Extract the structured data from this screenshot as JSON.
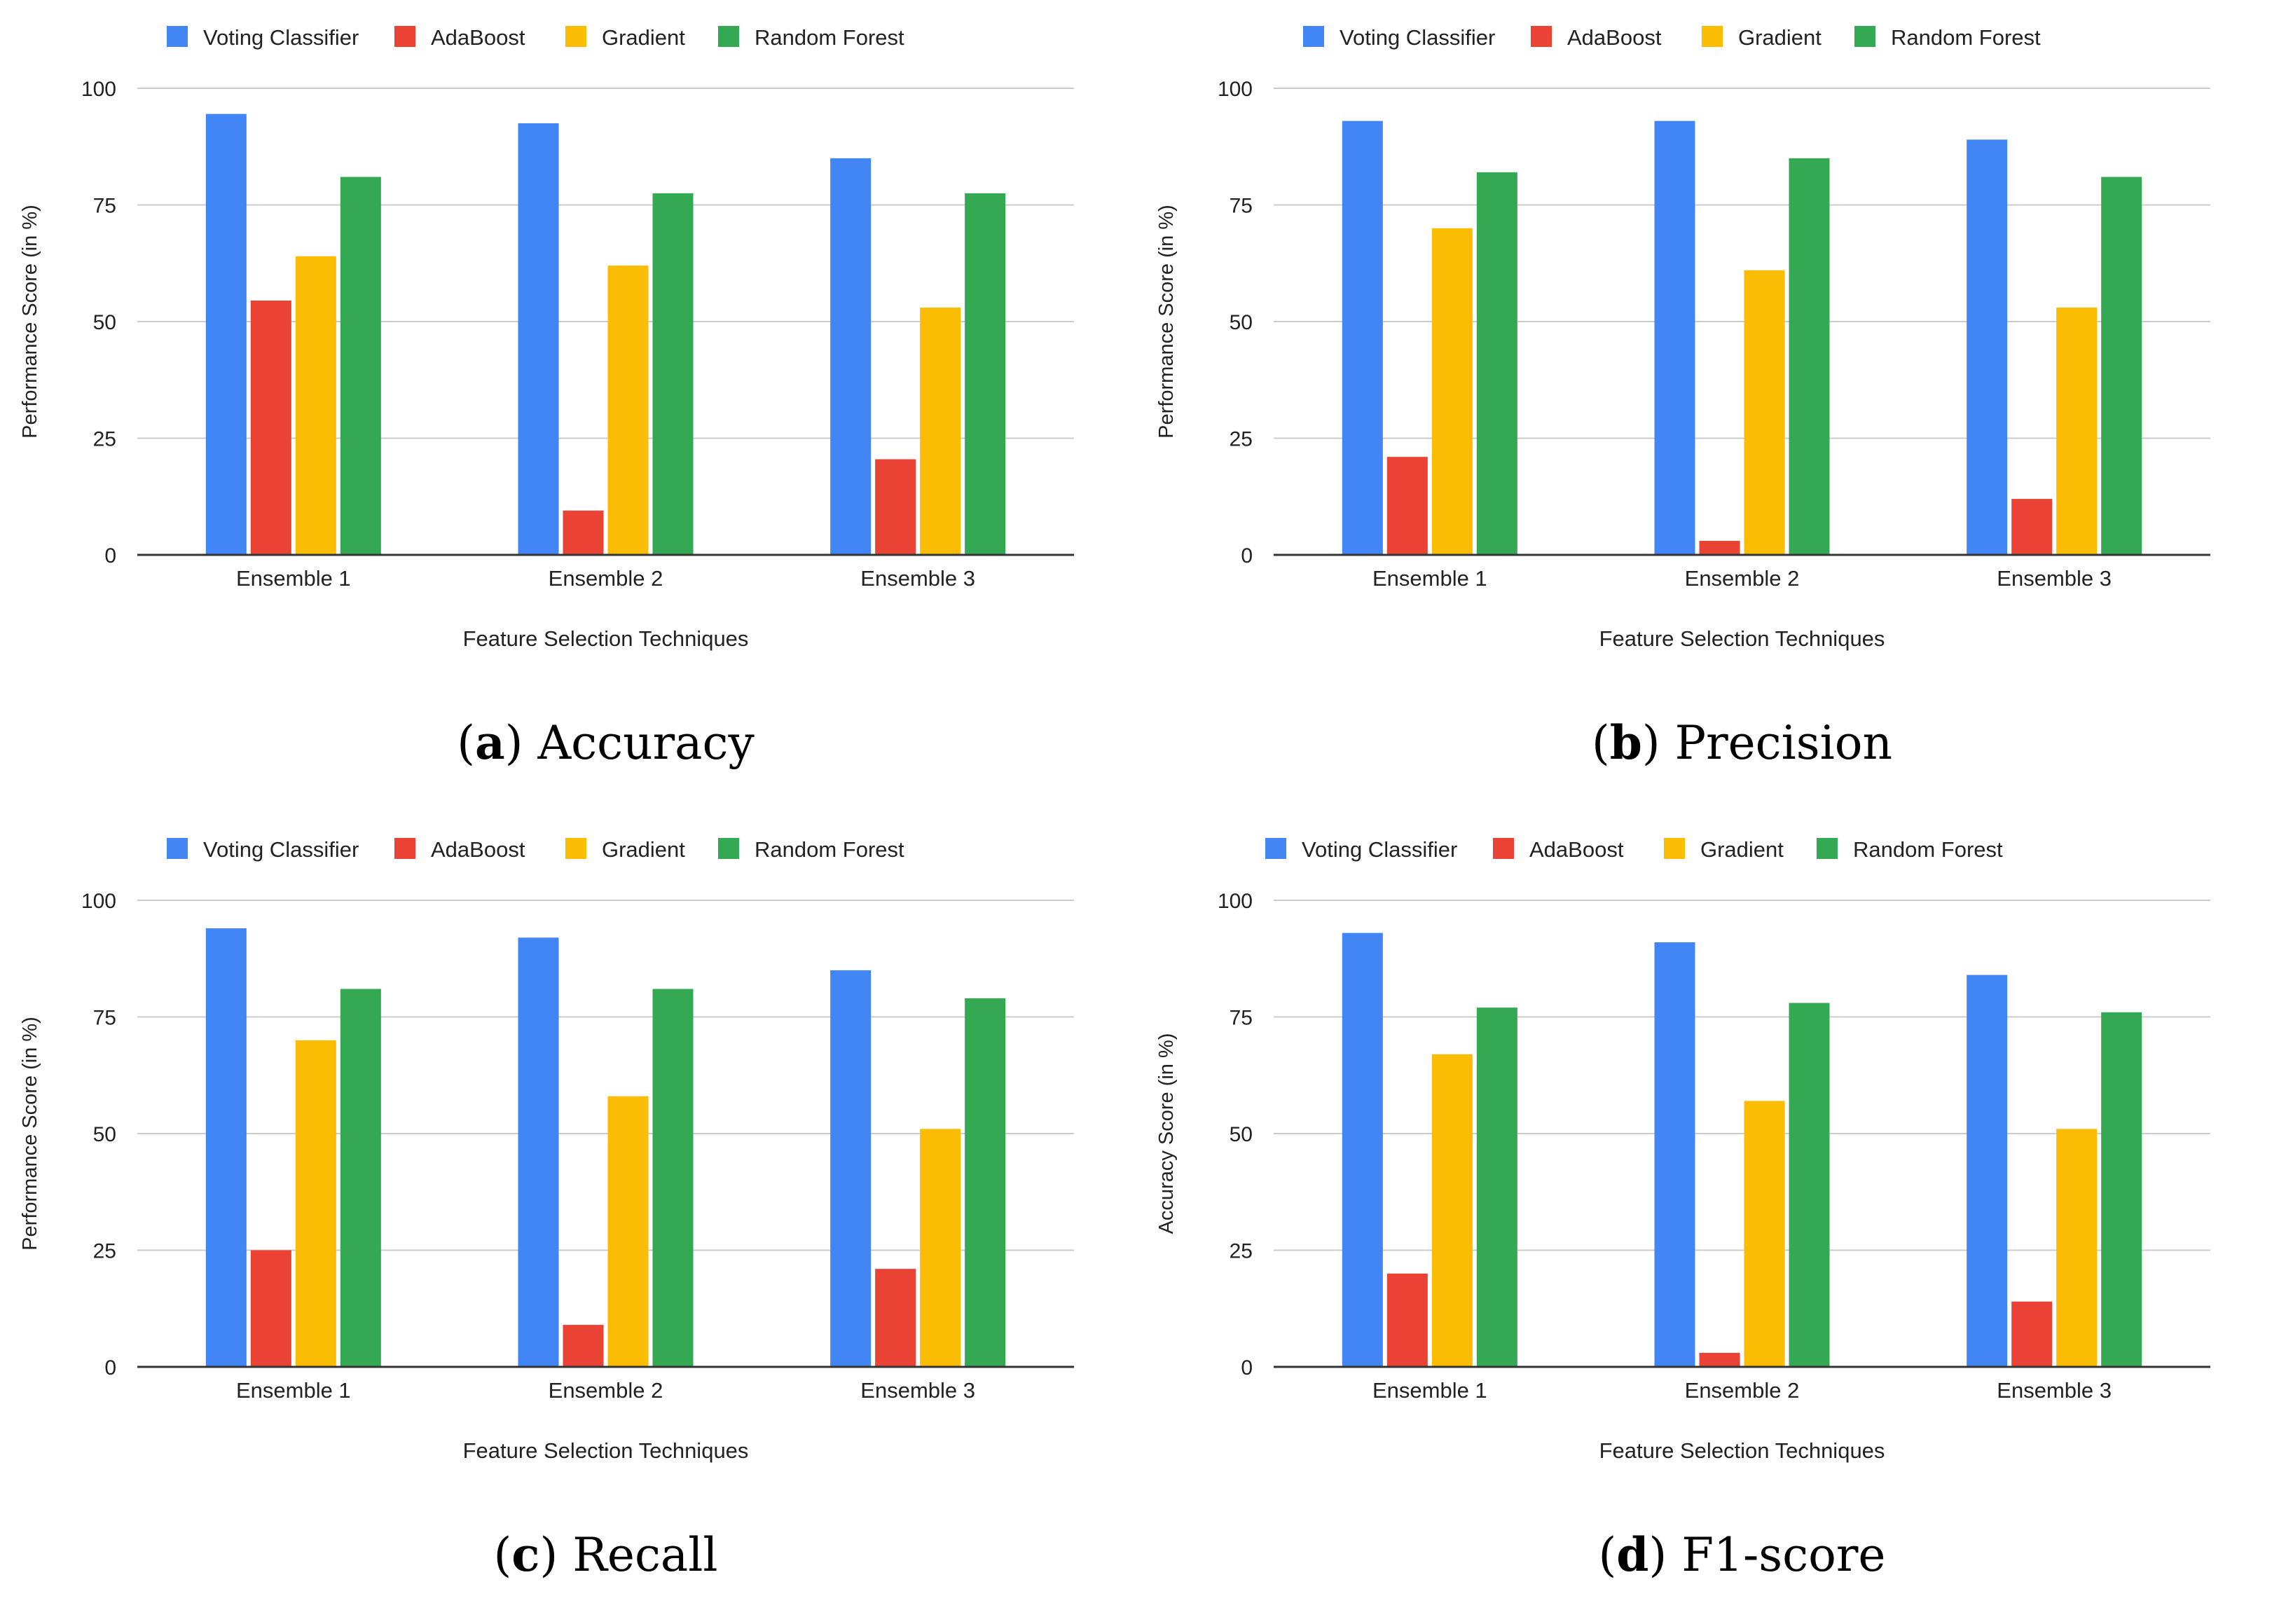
{
  "colors": {
    "Voting Classifier": "#4285F4",
    "AdaBoost": "#EA4335",
    "Gradient": "#FBBC04",
    "Random Forest": "#34A853",
    "grid": "#cccccc",
    "axis": "#333333",
    "text": "#222222"
  },
  "chart_data": [
    {
      "type": "bar",
      "panel_letter": "a",
      "caption": "Accuracy",
      "xlabel": "Feature Selection Techniques",
      "ylabel": "Performance Score (in %)",
      "ylim": [
        0,
        100
      ],
      "yticks": [
        "0",
        "25",
        "50",
        "75",
        "100"
      ],
      "grid": true,
      "legend": "top",
      "categories": [
        "Ensemble 1",
        "Ensemble 2",
        "Ensemble 3"
      ],
      "series": [
        {
          "name": "Voting Classifier",
          "values": [
            94.5,
            92.5,
            85
          ]
        },
        {
          "name": "AdaBoost",
          "values": [
            54.5,
            9.5,
            20.5
          ]
        },
        {
          "name": "Gradient",
          "values": [
            64,
            62,
            53
          ]
        },
        {
          "name": "Random Forest",
          "values": [
            81,
            77.5,
            77.5
          ]
        }
      ]
    },
    {
      "type": "bar",
      "panel_letter": "b",
      "caption": "Precision",
      "xlabel": "Feature Selection Techniques",
      "ylabel": "Performance Score (in %)",
      "ylim": [
        0,
        100
      ],
      "yticks": [
        "0",
        "25",
        "50",
        "75",
        "100"
      ],
      "grid": true,
      "legend": "top",
      "categories": [
        "Ensemble 1",
        "Ensemble 2",
        "Ensemble 3"
      ],
      "series": [
        {
          "name": "Voting Classifier",
          "values": [
            93,
            93,
            89
          ]
        },
        {
          "name": "AdaBoost",
          "values": [
            21,
            3,
            12
          ]
        },
        {
          "name": "Gradient",
          "values": [
            70,
            61,
            53
          ]
        },
        {
          "name": "Random Forest",
          "values": [
            82,
            85,
            81
          ]
        }
      ]
    },
    {
      "type": "bar",
      "panel_letter": "c",
      "caption": "Recall",
      "xlabel": "Feature Selection Techniques",
      "ylabel": "Performance Score (in %)",
      "ylim": [
        0,
        100
      ],
      "yticks": [
        "0",
        "25",
        "50",
        "75",
        "100"
      ],
      "grid": true,
      "legend": "top",
      "categories": [
        "Ensemble 1",
        "Ensemble 2",
        "Ensemble 3"
      ],
      "series": [
        {
          "name": "Voting Classifier",
          "values": [
            94,
            92,
            85
          ]
        },
        {
          "name": "AdaBoost",
          "values": [
            25,
            9,
            21
          ]
        },
        {
          "name": "Gradient",
          "values": [
            70,
            58,
            51
          ]
        },
        {
          "name": "Random Forest",
          "values": [
            81,
            81,
            79
          ]
        }
      ]
    },
    {
      "type": "bar",
      "panel_letter": "d",
      "caption": "F1-score",
      "xlabel": "Feature Selection Techniques",
      "ylabel": "Accuracy Score (in %)",
      "ylim": [
        0,
        100
      ],
      "yticks": [
        "0",
        "25",
        "50",
        "75",
        "100"
      ],
      "grid": true,
      "legend": "top",
      "categories": [
        "Ensemble 1",
        "Ensemble 2",
        "Ensemble 3"
      ],
      "series": [
        {
          "name": "Voting Classifier",
          "values": [
            93,
            91,
            84
          ]
        },
        {
          "name": "AdaBoost",
          "values": [
            20,
            3,
            14
          ]
        },
        {
          "name": "Gradient",
          "values": [
            67,
            57,
            51
          ]
        },
        {
          "name": "Random Forest",
          "values": [
            77,
            78,
            76
          ]
        }
      ]
    }
  ]
}
